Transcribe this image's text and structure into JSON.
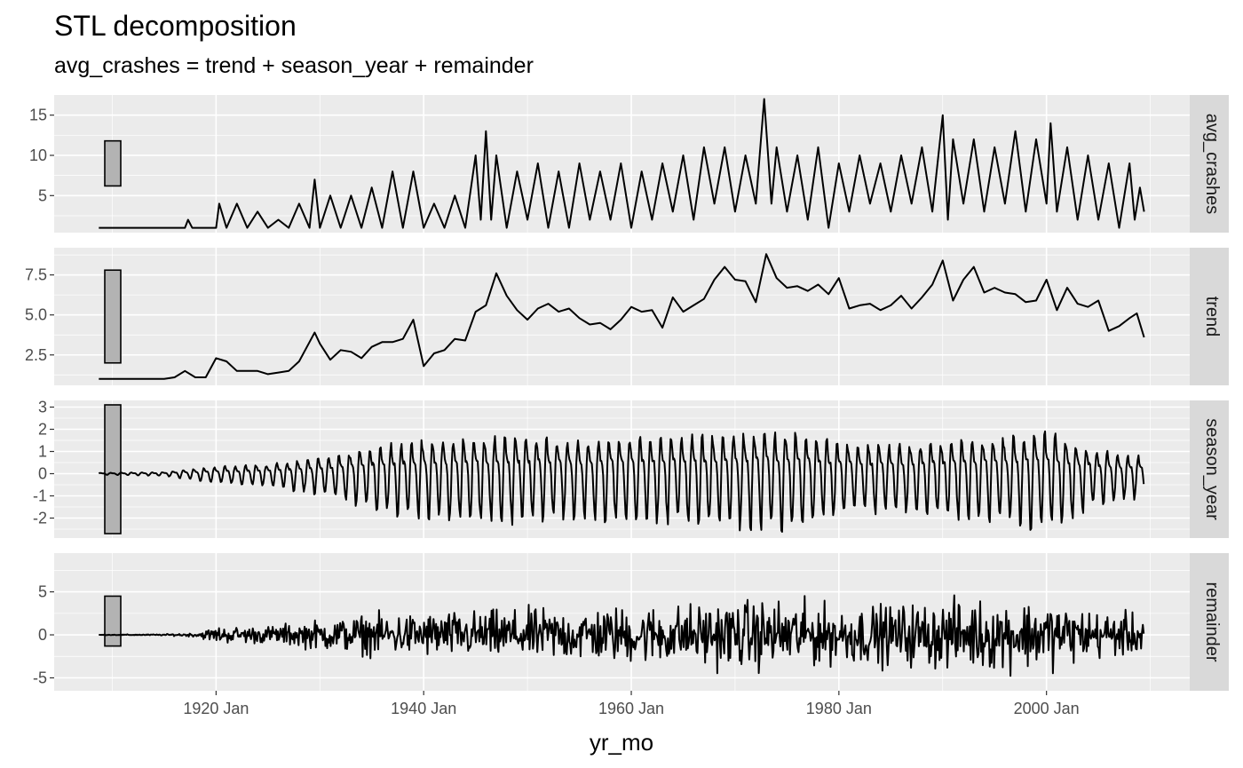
{
  "chart_data": {
    "type": "line",
    "title": "STL decomposition",
    "subtitle": "avg_crashes = trend + season_year + remainder",
    "xlabel": "yr_mo",
    "ylabel": "",
    "x_range": [
      "1908 Sep",
      "2009 Jun"
    ],
    "x_ticks": [
      {
        "label": "1920 Jan",
        "year": 1920
      },
      {
        "label": "1940 Jan",
        "year": 1940
      },
      {
        "label": "1960 Jan",
        "year": 1960
      },
      {
        "label": "1980 Jan",
        "year": 1980
      },
      {
        "label": "2000 Jan",
        "year": 2000
      }
    ],
    "facet_layout": "stacked vertically, strip labels on right",
    "grid": true,
    "line_color": "#000000",
    "panel_background": "#ebebeb",
    "strip_background": "#d9d9d9",
    "range_bar_fill": "#b3b3b3",
    "panels": [
      {
        "name": "avg_crashes",
        "ylim": [
          0.4,
          17.5
        ],
        "y_ticks": [
          {
            "value": 5,
            "label": "5"
          },
          {
            "value": 10,
            "label": "10"
          },
          {
            "value": 15,
            "label": "15"
          }
        ],
        "range_bar": [
          6.2,
          11.8
        ],
        "points": [
          [
            1908.7,
            1
          ],
          [
            1912,
            1
          ],
          [
            1917,
            1
          ],
          [
            1917.3,
            2
          ],
          [
            1917.7,
            1
          ],
          [
            1920,
            1
          ],
          [
            1920.3,
            4
          ],
          [
            1921,
            1
          ],
          [
            1922,
            4
          ],
          [
            1923,
            1
          ],
          [
            1924,
            3
          ],
          [
            1925,
            1
          ],
          [
            1926,
            2
          ],
          [
            1927,
            1
          ],
          [
            1928,
            4
          ],
          [
            1929,
            1
          ],
          [
            1929.5,
            7
          ],
          [
            1930,
            1
          ],
          [
            1931,
            5
          ],
          [
            1932,
            1
          ],
          [
            1933,
            5
          ],
          [
            1934,
            1
          ],
          [
            1935,
            6
          ],
          [
            1936,
            1
          ],
          [
            1937,
            8
          ],
          [
            1938,
            1
          ],
          [
            1939,
            8
          ],
          [
            1940,
            1
          ],
          [
            1941,
            4
          ],
          [
            1942,
            1
          ],
          [
            1943,
            5
          ],
          [
            1944,
            1
          ],
          [
            1945,
            10
          ],
          [
            1945.5,
            2
          ],
          [
            1946,
            13
          ],
          [
            1946.5,
            2
          ],
          [
            1947,
            10
          ],
          [
            1948,
            1
          ],
          [
            1949,
            8
          ],
          [
            1950,
            2
          ],
          [
            1951,
            9
          ],
          [
            1952,
            1
          ],
          [
            1953,
            8
          ],
          [
            1954,
            1
          ],
          [
            1955,
            9
          ],
          [
            1956,
            2
          ],
          [
            1957,
            8
          ],
          [
            1958,
            2
          ],
          [
            1959,
            9
          ],
          [
            1960,
            1
          ],
          [
            1961,
            8
          ],
          [
            1962,
            2
          ],
          [
            1963,
            9
          ],
          [
            1964,
            3
          ],
          [
            1965,
            10
          ],
          [
            1966,
            2
          ],
          [
            1967,
            11
          ],
          [
            1968,
            4
          ],
          [
            1969,
            11
          ],
          [
            1970,
            3
          ],
          [
            1971,
            10
          ],
          [
            1972,
            4
          ],
          [
            1972.8,
            17
          ],
          [
            1973.5,
            4
          ],
          [
            1974,
            11
          ],
          [
            1975,
            3
          ],
          [
            1976,
            10
          ],
          [
            1977,
            2
          ],
          [
            1978,
            11
          ],
          [
            1979,
            1
          ],
          [
            1980,
            9
          ],
          [
            1981,
            3
          ],
          [
            1982,
            10
          ],
          [
            1983,
            4
          ],
          [
            1984,
            9
          ],
          [
            1985,
            3
          ],
          [
            1986,
            10
          ],
          [
            1987,
            4
          ],
          [
            1988,
            11
          ],
          [
            1989,
            3
          ],
          [
            1990,
            15
          ],
          [
            1990.5,
            2
          ],
          [
            1991,
            12
          ],
          [
            1992,
            4
          ],
          [
            1993,
            12
          ],
          [
            1994,
            3
          ],
          [
            1995,
            11
          ],
          [
            1996,
            4
          ],
          [
            1997,
            13
          ],
          [
            1998,
            3
          ],
          [
            1999,
            12
          ],
          [
            2000,
            4
          ],
          [
            2000.4,
            14
          ],
          [
            2001,
            3
          ],
          [
            2002,
            11
          ],
          [
            2003,
            2
          ],
          [
            2004,
            10
          ],
          [
            2005,
            2
          ],
          [
            2006,
            9
          ],
          [
            2007,
            1
          ],
          [
            2008,
            9
          ],
          [
            2008.5,
            2
          ],
          [
            2009,
            6
          ],
          [
            2009.4,
            3
          ]
        ]
      },
      {
        "name": "trend",
        "ylim": [
          0.6,
          9.2
        ],
        "y_ticks": [
          {
            "value": 2.5,
            "label": "2.5"
          },
          {
            "value": 5.0,
            "label": "5.0"
          },
          {
            "value": 7.5,
            "label": "7.5"
          }
        ],
        "range_bar": [
          2.0,
          7.8
        ],
        "points": [
          [
            1908.7,
            1
          ],
          [
            1915,
            1
          ],
          [
            1916,
            1.1
          ],
          [
            1917,
            1.5
          ],
          [
            1918,
            1.1
          ],
          [
            1919,
            1.1
          ],
          [
            1920,
            2.3
          ],
          [
            1921,
            2.1
          ],
          [
            1922,
            1.5
          ],
          [
            1924,
            1.5
          ],
          [
            1925,
            1.3
          ],
          [
            1926,
            1.4
          ],
          [
            1927,
            1.5
          ],
          [
            1928,
            2.1
          ],
          [
            1929,
            3.3
          ],
          [
            1929.5,
            3.9
          ],
          [
            1930,
            3.2
          ],
          [
            1931,
            2.2
          ],
          [
            1932,
            2.8
          ],
          [
            1933,
            2.7
          ],
          [
            1934,
            2.3
          ],
          [
            1935,
            3
          ],
          [
            1936,
            3.3
          ],
          [
            1937,
            3.3
          ],
          [
            1938,
            3.5
          ],
          [
            1939,
            4.7
          ],
          [
            1940,
            1.8
          ],
          [
            1941,
            2.6
          ],
          [
            1942,
            2.8
          ],
          [
            1943,
            3.5
          ],
          [
            1944,
            3.4
          ],
          [
            1945,
            5.2
          ],
          [
            1946,
            5.6
          ],
          [
            1947,
            7.6
          ],
          [
            1948,
            6.2
          ],
          [
            1949,
            5.3
          ],
          [
            1950,
            4.7
          ],
          [
            1951,
            5.4
          ],
          [
            1952,
            5.7
          ],
          [
            1953,
            5.2
          ],
          [
            1954,
            5.4
          ],
          [
            1955,
            4.8
          ],
          [
            1956,
            4.4
          ],
          [
            1957,
            4.5
          ],
          [
            1958,
            4.1
          ],
          [
            1959,
            4.7
          ],
          [
            1960,
            5.5
          ],
          [
            1961,
            5.2
          ],
          [
            1962,
            5.3
          ],
          [
            1963,
            4.2
          ],
          [
            1964,
            6.1
          ],
          [
            1965,
            5.2
          ],
          [
            1966,
            5.6
          ],
          [
            1967,
            6
          ],
          [
            1968,
            7.2
          ],
          [
            1969,
            8
          ],
          [
            1970,
            7.2
          ],
          [
            1971,
            7.1
          ],
          [
            1972,
            5.8
          ],
          [
            1973,
            8.8
          ],
          [
            1974,
            7.3
          ],
          [
            1975,
            6.7
          ],
          [
            1976,
            6.8
          ],
          [
            1977,
            6.5
          ],
          [
            1978,
            6.9
          ],
          [
            1979,
            6.3
          ],
          [
            1980,
            7.3
          ],
          [
            1981,
            5.4
          ],
          [
            1982,
            5.6
          ],
          [
            1983,
            5.7
          ],
          [
            1984,
            5.3
          ],
          [
            1985,
            5.6
          ],
          [
            1986,
            6.2
          ],
          [
            1987,
            5.4
          ],
          [
            1988,
            6.1
          ],
          [
            1989,
            6.9
          ],
          [
            1990,
            8.4
          ],
          [
            1991,
            5.9
          ],
          [
            1992,
            7.2
          ],
          [
            1993,
            8
          ],
          [
            1994,
            6.4
          ],
          [
            1995,
            6.7
          ],
          [
            1996,
            6.4
          ],
          [
            1997,
            6.3
          ],
          [
            1998,
            5.8
          ],
          [
            1999,
            5.9
          ],
          [
            2000,
            7.2
          ],
          [
            2001,
            5.3
          ],
          [
            2002,
            6.7
          ],
          [
            2003,
            5.7
          ],
          [
            2004,
            5.5
          ],
          [
            2005,
            5.9
          ],
          [
            2006,
            4
          ],
          [
            2007,
            4.3
          ],
          [
            2008,
            4.8
          ],
          [
            2008.7,
            5.1
          ],
          [
            2009.4,
            3.6
          ]
        ]
      },
      {
        "name": "season_year",
        "ylim": [
          -2.9,
          3.3
        ],
        "y_ticks": [
          {
            "value": -2,
            "label": "-2"
          },
          {
            "value": -1,
            "label": "-1"
          },
          {
            "value": 0,
            "label": "0"
          },
          {
            "value": 1,
            "label": "1"
          },
          {
            "value": 2,
            "label": "2"
          },
          {
            "value": 3,
            "label": "3"
          }
        ],
        "range_bar": [
          -2.7,
          3.1
        ],
        "amplitude_profile": [
          [
            1908.7,
            0.05
          ],
          [
            1915,
            0.1
          ],
          [
            1920,
            0.45
          ],
          [
            1925,
            0.6
          ],
          [
            1930,
            1
          ],
          [
            1935,
            1.7
          ],
          [
            1940,
            2.2
          ],
          [
            1945,
            2.3
          ],
          [
            1950,
            2.4
          ],
          [
            1955,
            2.1
          ],
          [
            1960,
            2.3
          ],
          [
            1965,
            2.4
          ],
          [
            1970,
            2.6
          ],
          [
            1975,
            2.8
          ],
          [
            1980,
            2
          ],
          [
            1985,
            1.8
          ],
          [
            1990,
            2.1
          ],
          [
            1995,
            2.3
          ],
          [
            2000,
            2.7
          ],
          [
            2005,
            1.5
          ],
          [
            2009.4,
            1.1
          ]
        ]
      },
      {
        "name": "remainder",
        "ylim": [
          -6.5,
          9.5
        ],
        "y_ticks": [
          {
            "value": -5,
            "label": "-5"
          },
          {
            "value": 0,
            "label": "0"
          },
          {
            "value": 5,
            "label": "5"
          }
        ],
        "range_bar": [
          -1.3,
          4.5
        ],
        "amplitude_profile": [
          [
            1908.7,
            0.05
          ],
          [
            1915,
            0.1
          ],
          [
            1918,
            0.3
          ],
          [
            1920,
            1.2
          ],
          [
            1925,
            1.3
          ],
          [
            1930,
            2.2
          ],
          [
            1935,
            3
          ],
          [
            1940,
            3.3
          ],
          [
            1945,
            3.5
          ],
          [
            1950,
            3.8
          ],
          [
            1960,
            4.2
          ],
          [
            1965,
            4.5
          ],
          [
            1970,
            5
          ],
          [
            1975,
            5.2
          ],
          [
            1980,
            4.2
          ],
          [
            1985,
            4.5
          ],
          [
            1990,
            5
          ],
          [
            1995,
            5.2
          ],
          [
            2000,
            5
          ],
          [
            2005,
            3.5
          ],
          [
            2009.4,
            3
          ]
        ]
      }
    ]
  }
}
